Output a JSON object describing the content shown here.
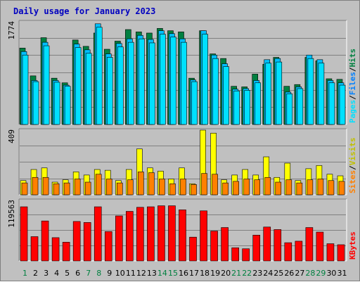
{
  "title": "Daily usage for January 2023",
  "colors": {
    "hits": "#008040",
    "files": "#00c0ff",
    "pages": "#00e0ff",
    "visits": "#ffff00",
    "sites": "#ff8000",
    "kbytes": "#ff0000",
    "weekend_label": "#008040",
    "weekday_label": "#000000",
    "title": "#0000c0"
  },
  "chart_data": [
    {
      "type": "bar",
      "title": "Daily usage for January 2023",
      "ymax_label": "1774",
      "ylim": [
        0,
        1774
      ],
      "categories": [
        "1",
        "2",
        "3",
        "4",
        "5",
        "6",
        "7",
        "8",
        "9",
        "10",
        "11",
        "12",
        "13",
        "14",
        "15",
        "16",
        "17",
        "18",
        "19",
        "20",
        "21",
        "22",
        "23",
        "24",
        "25",
        "26",
        "27",
        "28",
        "29",
        "30",
        "31"
      ],
      "weekend_days": [
        1,
        7,
        8,
        14,
        15,
        21,
        22,
        28,
        29
      ],
      "series": [
        {
          "name": "Hits",
          "values": [
            1320,
            840,
            1500,
            800,
            720,
            1460,
            1350,
            1580,
            1300,
            1440,
            1640,
            1600,
            1580,
            1660,
            1620,
            1600,
            800,
            1620,
            1220,
            1140,
            660,
            650,
            870,
            1040,
            1160,
            660,
            690,
            1160,
            1100,
            790,
            780
          ]
        },
        {
          "name": "Files",
          "values": [
            1260,
            760,
            1420,
            760,
            680,
            1390,
            1290,
            1740,
            1220,
            1400,
            1480,
            1540,
            1470,
            1620,
            1570,
            1480,
            770,
            1620,
            1200,
            1050,
            610,
            620,
            760,
            1120,
            1140,
            560,
            650,
            1200,
            1120,
            760,
            720
          ]
        },
        {
          "name": "Pages",
          "values": [
            1200,
            740,
            1360,
            730,
            660,
            1330,
            1230,
            1680,
            1160,
            1340,
            1420,
            1480,
            1410,
            1560,
            1510,
            1420,
            740,
            1560,
            1140,
            1000,
            580,
            590,
            720,
            1060,
            1080,
            530,
            620,
            1140,
            1060,
            720,
            680
          ]
        }
      ],
      "legend": [
        "Pages",
        "Files",
        "Hits"
      ]
    },
    {
      "type": "bar",
      "ymax_label": "409",
      "ylim": [
        0,
        409
      ],
      "categories": [
        "1",
        "2",
        "3",
        "4",
        "5",
        "6",
        "7",
        "8",
        "9",
        "10",
        "11",
        "12",
        "13",
        "14",
        "15",
        "16",
        "17",
        "18",
        "19",
        "20",
        "21",
        "22",
        "23",
        "24",
        "25",
        "26",
        "27",
        "28",
        "29",
        "30",
        "31"
      ],
      "series": [
        {
          "name": "Visits",
          "values": [
            90,
            160,
            170,
            80,
            95,
            145,
            125,
            160,
            155,
            90,
            160,
            290,
            170,
            150,
            100,
            170,
            70,
            409,
            390,
            95,
            125,
            160,
            125,
            240,
            110,
            200,
            90,
            165,
            185,
            130,
            120
          ]
        },
        {
          "name": "Sites",
          "values": [
            75,
            110,
            110,
            70,
            75,
            100,
            80,
            130,
            100,
            75,
            95,
            145,
            140,
            100,
            70,
            100,
            65,
            135,
            130,
            75,
            85,
            100,
            95,
            110,
            80,
            95,
            75,
            95,
            100,
            90,
            85
          ]
        }
      ],
      "legend": [
        "Sites",
        "Visits"
      ]
    },
    {
      "type": "bar",
      "ymax_label": "119563",
      "ylim": [
        0,
        119563
      ],
      "categories": [
        "1",
        "2",
        "3",
        "4",
        "5",
        "6",
        "7",
        "8",
        "9",
        "10",
        "11",
        "12",
        "13",
        "14",
        "15",
        "16",
        "17",
        "18",
        "19",
        "20",
        "21",
        "22",
        "23",
        "24",
        "25",
        "26",
        "27",
        "28",
        "29",
        "30",
        "31"
      ],
      "series": [
        {
          "name": "KBytes",
          "values": [
            107000,
            48000,
            79000,
            46000,
            37000,
            78000,
            76000,
            107000,
            58000,
            89000,
            98000,
            106000,
            107000,
            109000,
            109000,
            101000,
            47000,
            99000,
            59000,
            66000,
            26000,
            24000,
            51000,
            67000,
            62000,
            36000,
            39000,
            66000,
            57000,
            34000,
            32000
          ]
        }
      ],
      "legend": [
        "KBytes"
      ]
    }
  ]
}
